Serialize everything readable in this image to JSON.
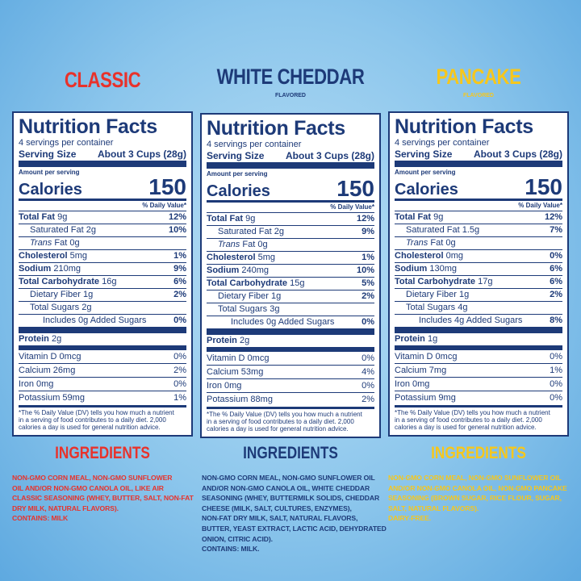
{
  "panels": [
    {
      "title": "CLASSIC",
      "label": {
        "heading": "Nutrition Facts",
        "servings": "4 servings per container",
        "serving_label": "Serving Size",
        "serving_value": "About 3 Cups (28g)",
        "amount_per": "Amount per serving",
        "calories_label": "Calories",
        "calories": "150",
        "dv_header": "% Daily Value*",
        "rows": [
          {
            "label": "Total Fat",
            "amount": "9g",
            "dv": "12%"
          },
          {
            "label": "Saturated Fat",
            "amount": "2g",
            "dv": "10%"
          },
          {
            "label": "Trans",
            "amount": "Fat 0g"
          },
          {
            "label": "Cholesterol",
            "amount": "5mg",
            "dv": "1%"
          },
          {
            "label": "Sodium",
            "amount": "210mg",
            "dv": "9%"
          },
          {
            "label": "Total Carbohydrate",
            "amount": "16g",
            "dv": "6%"
          },
          {
            "label": "Dietary Fiber",
            "amount": "1g",
            "dv": "2%"
          },
          {
            "label": "Total Sugars",
            "amount": "2g"
          },
          {
            "label": "Includes 0g Added Sugars",
            "dv": "0%"
          }
        ],
        "protein": {
          "label": "Protein",
          "amount": "2g"
        },
        "vitamins": [
          {
            "label": "Vitamin D",
            "amount": "0mcg",
            "dv": "0%"
          },
          {
            "label": "Calcium",
            "amount": "26mg",
            "dv": "2%"
          },
          {
            "label": "Iron",
            "amount": "0mg",
            "dv": "0%"
          },
          {
            "label": "Potassium",
            "amount": "59mg",
            "dv": "1%"
          }
        ],
        "footnote": [
          "*The % Daily Value (DV) tells you how much a nutrient",
          "in a serving of food contributes to a daily diet. 2,000",
          "calories a day is used for general nutrition advice."
        ]
      },
      "ingredients_heading": "INGREDIENTS",
      "ingredients": [
        "NON-GMO CORN MEAL, NON-GMO SUNFLOWER",
        "OIL AND/OR NON-GMO CANOLA OIL, LIKE AIR",
        "CLASSIC SEASONING (WHEY, BUTTER, SALT, NON-FAT",
        "DRY MILK, NATURAL FLAVORS).",
        "CONTAINS: MILK"
      ]
    },
    {
      "title": "WHITE CHEDDAR",
      "subtitle": "FLAVORED",
      "label": {
        "heading": "Nutrition Facts",
        "servings": "4 servings per container",
        "serving_label": "Serving Size",
        "serving_value": "About 3 Cups (28g)",
        "amount_per": "Amount per serving",
        "calories_label": "Calories",
        "calories": "150",
        "dv_header": "% Daily Value*",
        "rows": [
          {
            "label": "Total Fat",
            "amount": "9g",
            "dv": "12%"
          },
          {
            "label": "Saturated Fat",
            "amount": "2g",
            "dv": "9%"
          },
          {
            "label": "Trans",
            "amount": "Fat 0g"
          },
          {
            "label": "Cholesterol",
            "amount": "5mg",
            "dv": "1%"
          },
          {
            "label": "Sodium",
            "amount": "240mg",
            "dv": "10%"
          },
          {
            "label": "Total Carbohydrate",
            "amount": "15g",
            "dv": "5%"
          },
          {
            "label": "Dietary Fiber",
            "amount": "1g",
            "dv": "2%"
          },
          {
            "label": "Total Sugars",
            "amount": "3g"
          },
          {
            "label": "Includes 0g Added Sugars",
            "dv": "0%"
          }
        ],
        "protein": {
          "label": "Protein",
          "amount": "2g"
        },
        "vitamins": [
          {
            "label": "Vitamin D",
            "amount": "0mcg",
            "dv": "0%"
          },
          {
            "label": "Calcium",
            "amount": "53mg",
            "dv": "4%"
          },
          {
            "label": "Iron",
            "amount": "0mg",
            "dv": "0%"
          },
          {
            "label": "Potassium",
            "amount": "88mg",
            "dv": "2%"
          }
        ],
        "footnote": [
          "*The % Daily Value (DV) tells you how much a nutrient",
          "in a serving of food contributes to a daily diet. 2,000",
          "calories a day is used for general nutrition advice."
        ]
      },
      "ingredients_heading": "INGREDIENTS",
      "ingredients": [
        "NON-GMO CORN MEAL, NON-GMO SUNFLOWER OIL",
        "AND/OR NON-GMO CANOLA OIL, WHITE CHEDDAR",
        "SEASONING (WHEY, BUTTERMILK SOLIDS, CHEDDAR",
        "CHEESE (MILK, SALT, CULTURES, ENZYMES),",
        "NON-FAT DRY MILK, SALT, NATURAL FLAVORS,",
        "BUTTER, YEAST EXTRACT, LACTIC ACID, DEHYDRATED",
        "ONION, CITRIC ACID).",
        "CONTAINS: MILK."
      ]
    },
    {
      "title": "PANCAKE",
      "subtitle": "FLAVORED",
      "label": {
        "heading": "Nutrition Facts",
        "servings": "4 servings per container",
        "serving_label": "Serving Size",
        "serving_value": "About 3 Cups (28g)",
        "amount_per": "Amount per serving",
        "calories_label": "Calories",
        "calories": "150",
        "dv_header": "% Daily Value*",
        "rows": [
          {
            "label": "Total Fat",
            "amount": "9g",
            "dv": "12%"
          },
          {
            "label": "Saturated Fat",
            "amount": "1.5g",
            "dv": "7%"
          },
          {
            "label": "Trans",
            "amount": "Fat 0g"
          },
          {
            "label": "Cholesterol",
            "amount": "0mg",
            "dv": "0%"
          },
          {
            "label": "Sodium",
            "amount": "130mg",
            "dv": "6%"
          },
          {
            "label": "Total Carbohydrate",
            "amount": "17g",
            "dv": "6%"
          },
          {
            "label": "Dietary Fiber",
            "amount": "1g",
            "dv": "2%"
          },
          {
            "label": "Total Sugars",
            "amount": "4g"
          },
          {
            "label": "Includes 4g Added Sugars",
            "dv": "8%"
          }
        ],
        "protein": {
          "label": "Protein",
          "amount": "1g"
        },
        "vitamins": [
          {
            "label": "Vitamin D",
            "amount": "0mcg",
            "dv": "0%"
          },
          {
            "label": "Calcium",
            "amount": "7mg",
            "dv": "1%"
          },
          {
            "label": "Iron",
            "amount": "0mg",
            "dv": "0%"
          },
          {
            "label": "Potassium",
            "amount": "9mg",
            "dv": "0%"
          }
        ],
        "footnote": [
          "*The % Daily Value (DV) tells you how much a nutrient",
          "in a serving of food contributes to a daily diet. 2,000",
          "calories a day is used for general nutrition advice."
        ]
      },
      "ingredients_heading": "INGREDIENTS",
      "ingredients": [
        "NON-GMO CORN MEAL, NON-GMO SUNFLOWER OIL",
        "AND/OR NON-GMO CANOLA OIL, NON-GMO PANCAKE",
        "SEASONING (BROWN SUGAR, RICE FLOUR, SUGAR,",
        "SALT, NATURAL FLAVORS).",
        "DAIRY-FREE."
      ]
    }
  ]
}
